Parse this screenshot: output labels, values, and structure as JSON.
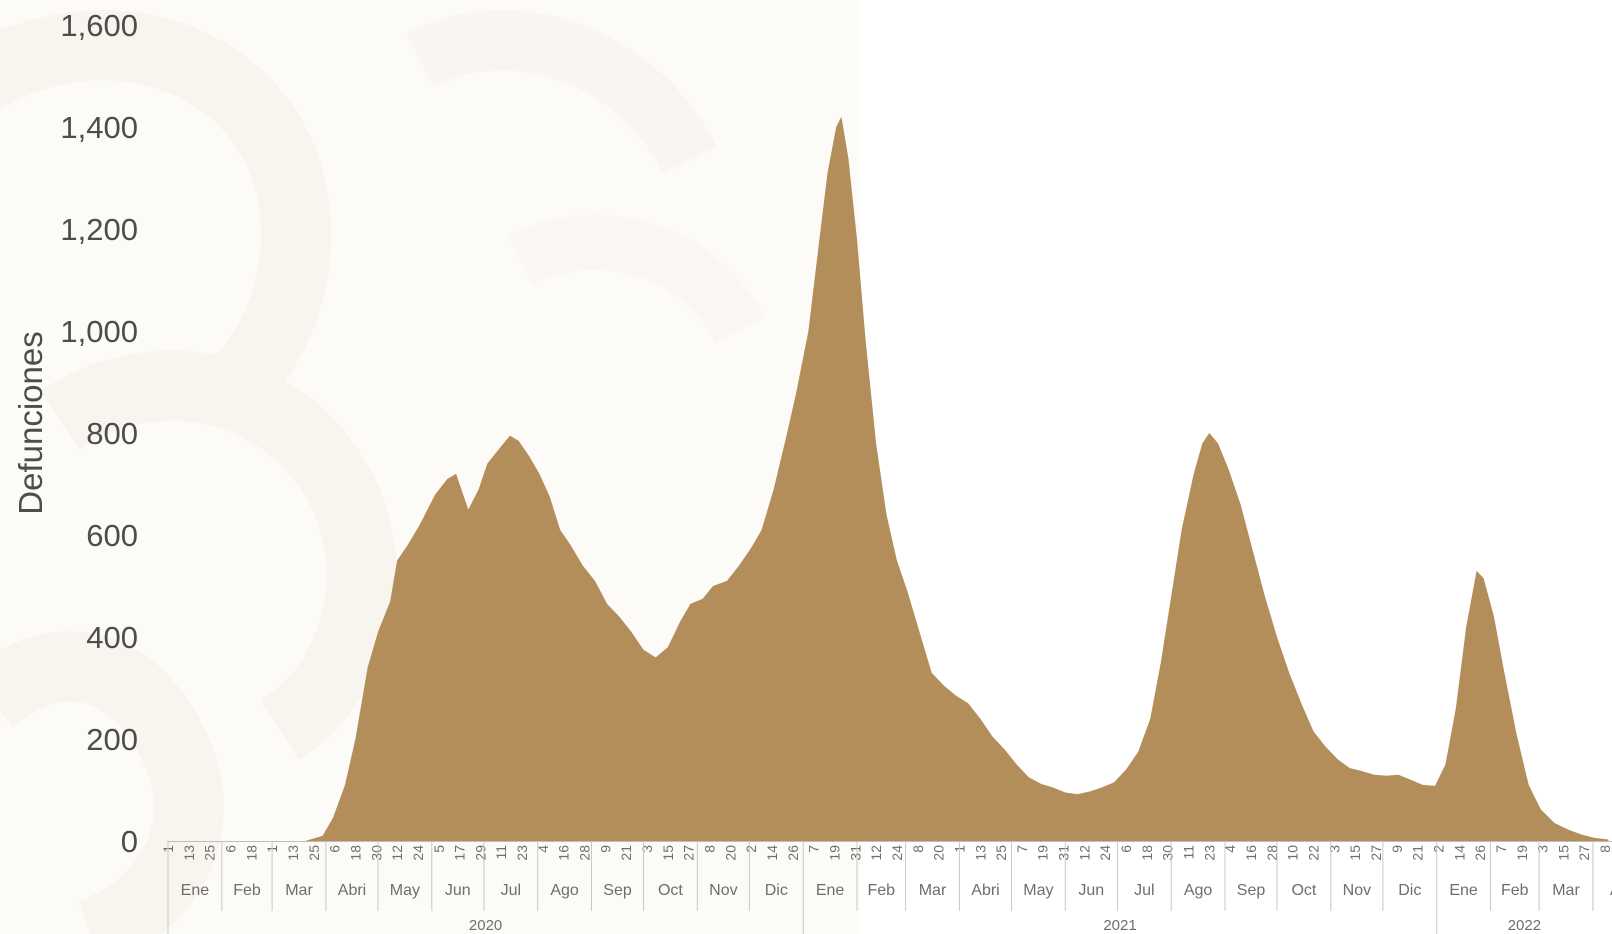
{
  "chart_data": {
    "type": "area",
    "title": "",
    "ylabel": "Defunciones",
    "ylim": [
      0,
      1600
    ],
    "y_ticks": [
      "0",
      "200",
      "400",
      "600",
      "800",
      "1,000",
      "1,200",
      "1,400",
      "1,600"
    ],
    "grid": false,
    "fill_color": "#b38e5a",
    "x_start": "2020-01-01",
    "x_end": "2022-04-10",
    "series": [
      {
        "points": [
          [
            "2020-01-01",
            0
          ],
          [
            "2020-03-20",
            0
          ],
          [
            "2020-03-30",
            10
          ],
          [
            "2020-04-05",
            45
          ],
          [
            "2020-04-12",
            110
          ],
          [
            "2020-04-18",
            200
          ],
          [
            "2020-04-25",
            340
          ],
          [
            "2020-05-01",
            410
          ],
          [
            "2020-05-08",
            470
          ],
          [
            "2020-05-12",
            550
          ],
          [
            "2020-05-18",
            580
          ],
          [
            "2020-05-25",
            620
          ],
          [
            "2020-06-03",
            680
          ],
          [
            "2020-06-10",
            710
          ],
          [
            "2020-06-15",
            720
          ],
          [
            "2020-06-18",
            690
          ],
          [
            "2020-06-22",
            650
          ],
          [
            "2020-06-28",
            690
          ],
          [
            "2020-07-03",
            740
          ],
          [
            "2020-07-10",
            770
          ],
          [
            "2020-07-16",
            795
          ],
          [
            "2020-07-21",
            785
          ],
          [
            "2020-07-27",
            755
          ],
          [
            "2020-08-02",
            720
          ],
          [
            "2020-08-08",
            675
          ],
          [
            "2020-08-14",
            610
          ],
          [
            "2020-08-20",
            580
          ],
          [
            "2020-08-27",
            540
          ],
          [
            "2020-09-03",
            510
          ],
          [
            "2020-09-10",
            465
          ],
          [
            "2020-09-17",
            440
          ],
          [
            "2020-09-24",
            410
          ],
          [
            "2020-10-01",
            375
          ],
          [
            "2020-10-08",
            360
          ],
          [
            "2020-10-15",
            380
          ],
          [
            "2020-10-22",
            430
          ],
          [
            "2020-10-28",
            465
          ],
          [
            "2020-11-04",
            475
          ],
          [
            "2020-11-10",
            500
          ],
          [
            "2020-11-18",
            510
          ],
          [
            "2020-11-25",
            540
          ],
          [
            "2020-12-02",
            575
          ],
          [
            "2020-12-08",
            610
          ],
          [
            "2020-12-15",
            690
          ],
          [
            "2020-12-22",
            790
          ],
          [
            "2020-12-28",
            880
          ],
          [
            "2021-01-04",
            1000
          ],
          [
            "2021-01-10",
            1170
          ],
          [
            "2021-01-15",
            1310
          ],
          [
            "2021-01-20",
            1400
          ],
          [
            "2021-01-23",
            1420
          ],
          [
            "2021-01-27",
            1340
          ],
          [
            "2021-02-01",
            1180
          ],
          [
            "2021-02-06",
            980
          ],
          [
            "2021-02-12",
            780
          ],
          [
            "2021-02-18",
            640
          ],
          [
            "2021-02-24",
            550
          ],
          [
            "2021-03-02",
            490
          ],
          [
            "2021-03-09",
            410
          ],
          [
            "2021-03-16",
            330
          ],
          [
            "2021-03-23",
            305
          ],
          [
            "2021-03-30",
            285
          ],
          [
            "2021-04-06",
            270
          ],
          [
            "2021-04-13",
            240
          ],
          [
            "2021-04-20",
            205
          ],
          [
            "2021-04-27",
            180
          ],
          [
            "2021-05-04",
            150
          ],
          [
            "2021-05-11",
            125
          ],
          [
            "2021-05-18",
            112
          ],
          [
            "2021-05-25",
            105
          ],
          [
            "2021-06-01",
            95
          ],
          [
            "2021-06-08",
            92
          ],
          [
            "2021-06-15",
            97
          ],
          [
            "2021-06-22",
            105
          ],
          [
            "2021-06-29",
            115
          ],
          [
            "2021-07-06",
            140
          ],
          [
            "2021-07-13",
            175
          ],
          [
            "2021-07-20",
            240
          ],
          [
            "2021-07-26",
            350
          ],
          [
            "2021-08-01",
            480
          ],
          [
            "2021-08-07",
            610
          ],
          [
            "2021-08-14",
            720
          ],
          [
            "2021-08-19",
            780
          ],
          [
            "2021-08-23",
            800
          ],
          [
            "2021-08-28",
            780
          ],
          [
            "2021-09-03",
            730
          ],
          [
            "2021-09-10",
            660
          ],
          [
            "2021-09-17",
            570
          ],
          [
            "2021-09-24",
            480
          ],
          [
            "2021-10-01",
            400
          ],
          [
            "2021-10-08",
            330
          ],
          [
            "2021-10-15",
            270
          ],
          [
            "2021-10-22",
            215
          ],
          [
            "2021-10-29",
            185
          ],
          [
            "2021-11-05",
            160
          ],
          [
            "2021-11-12",
            143
          ],
          [
            "2021-11-19",
            137
          ],
          [
            "2021-11-26",
            130
          ],
          [
            "2021-12-03",
            128
          ],
          [
            "2021-12-10",
            130
          ],
          [
            "2021-12-17",
            120
          ],
          [
            "2021-12-24",
            110
          ],
          [
            "2021-12-31",
            108
          ],
          [
            "2022-01-06",
            150
          ],
          [
            "2022-01-12",
            260
          ],
          [
            "2022-01-18",
            420
          ],
          [
            "2022-01-24",
            530
          ],
          [
            "2022-01-28",
            515
          ],
          [
            "2022-02-03",
            440
          ],
          [
            "2022-02-09",
            330
          ],
          [
            "2022-02-16",
            210
          ],
          [
            "2022-02-23",
            110
          ],
          [
            "2022-03-02",
            62
          ],
          [
            "2022-03-10",
            35
          ],
          [
            "2022-03-18",
            22
          ],
          [
            "2022-03-26",
            12
          ],
          [
            "2022-04-02",
            6
          ],
          [
            "2022-04-10",
            3
          ]
        ]
      }
    ],
    "day_ticks": [
      [
        "2020-01-01",
        "1"
      ],
      [
        "2020-01-13",
        "13"
      ],
      [
        "2020-01-25",
        "25"
      ],
      [
        "2020-02-06",
        "6"
      ],
      [
        "2020-02-18",
        "18"
      ],
      [
        "2020-03-01",
        "1"
      ],
      [
        "2020-03-13",
        "13"
      ],
      [
        "2020-03-25",
        "25"
      ],
      [
        "2020-04-06",
        "6"
      ],
      [
        "2020-04-18",
        "18"
      ],
      [
        "2020-04-30",
        "30"
      ],
      [
        "2020-05-12",
        "12"
      ],
      [
        "2020-05-24",
        "24"
      ],
      [
        "2020-06-05",
        "5"
      ],
      [
        "2020-06-17",
        "17"
      ],
      [
        "2020-06-29",
        "29"
      ],
      [
        "2020-07-11",
        "11"
      ],
      [
        "2020-07-23",
        "23"
      ],
      [
        "2020-08-04",
        "4"
      ],
      [
        "2020-08-16",
        "16"
      ],
      [
        "2020-08-28",
        "28"
      ],
      [
        "2020-09-09",
        "9"
      ],
      [
        "2020-09-21",
        "21"
      ],
      [
        "2020-10-03",
        "3"
      ],
      [
        "2020-10-15",
        "15"
      ],
      [
        "2020-10-27",
        "27"
      ],
      [
        "2020-11-08",
        "8"
      ],
      [
        "2020-11-20",
        "20"
      ],
      [
        "2020-12-02",
        "2"
      ],
      [
        "2020-12-14",
        "14"
      ],
      [
        "2020-12-26",
        "26"
      ],
      [
        "2021-01-07",
        "7"
      ],
      [
        "2021-01-19",
        "19"
      ],
      [
        "2021-01-31",
        "31"
      ],
      [
        "2021-02-12",
        "12"
      ],
      [
        "2021-02-24",
        "24"
      ],
      [
        "2021-03-08",
        "8"
      ],
      [
        "2021-03-20",
        "20"
      ],
      [
        "2021-04-01",
        "1"
      ],
      [
        "2021-04-13",
        "13"
      ],
      [
        "2021-04-25",
        "25"
      ],
      [
        "2021-05-07",
        "7"
      ],
      [
        "2021-05-19",
        "19"
      ],
      [
        "2021-05-31",
        "31"
      ],
      [
        "2021-06-12",
        "12"
      ],
      [
        "2021-06-24",
        "24"
      ],
      [
        "2021-07-06",
        "6"
      ],
      [
        "2021-07-18",
        "18"
      ],
      [
        "2021-07-30",
        "30"
      ],
      [
        "2021-08-11",
        "11"
      ],
      [
        "2021-08-23",
        "23"
      ],
      [
        "2021-09-04",
        "4"
      ],
      [
        "2021-09-16",
        "16"
      ],
      [
        "2021-09-28",
        "28"
      ],
      [
        "2021-10-10",
        "10"
      ],
      [
        "2021-10-22",
        "22"
      ],
      [
        "2021-11-03",
        "3"
      ],
      [
        "2021-11-15",
        "15"
      ],
      [
        "2021-11-27",
        "27"
      ],
      [
        "2021-12-09",
        "9"
      ],
      [
        "2021-12-21",
        "21"
      ],
      [
        "2022-01-02",
        "2"
      ],
      [
        "2022-01-14",
        "14"
      ],
      [
        "2022-01-26",
        "26"
      ],
      [
        "2022-02-07",
        "7"
      ],
      [
        "2022-02-19",
        "19"
      ],
      [
        "2022-03-03",
        "3"
      ],
      [
        "2022-03-15",
        "15"
      ],
      [
        "2022-03-27",
        "27"
      ],
      [
        "2022-04-08",
        "8"
      ]
    ],
    "months": [
      [
        "2020-01",
        "Ene"
      ],
      [
        "2020-02",
        "Feb"
      ],
      [
        "2020-03",
        "Mar"
      ],
      [
        "2020-04",
        "Abri"
      ],
      [
        "2020-05",
        "May"
      ],
      [
        "2020-06",
        "Jun"
      ],
      [
        "2020-07",
        "Jul"
      ],
      [
        "2020-08",
        "Ago"
      ],
      [
        "2020-09",
        "Sep"
      ],
      [
        "2020-10",
        "Oct"
      ],
      [
        "2020-11",
        "Nov"
      ],
      [
        "2020-12",
        "Dic"
      ],
      [
        "2021-01",
        "Ene"
      ],
      [
        "2021-02",
        "Feb"
      ],
      [
        "2021-03",
        "Mar"
      ],
      [
        "2021-04",
        "Abri"
      ],
      [
        "2021-05",
        "May"
      ],
      [
        "2021-06",
        "Jun"
      ],
      [
        "2021-07",
        "Jul"
      ],
      [
        "2021-08",
        "Ago"
      ],
      [
        "2021-09",
        "Sep"
      ],
      [
        "2021-10",
        "Oct"
      ],
      [
        "2021-11",
        "Nov"
      ],
      [
        "2021-12",
        "Dic"
      ],
      [
        "2022-01",
        "Ene"
      ],
      [
        "2022-02",
        "Feb"
      ],
      [
        "2022-03",
        "Mar"
      ],
      [
        "2022-04",
        "Abr"
      ]
    ],
    "years": [
      "2020",
      "2021",
      "2022"
    ]
  }
}
